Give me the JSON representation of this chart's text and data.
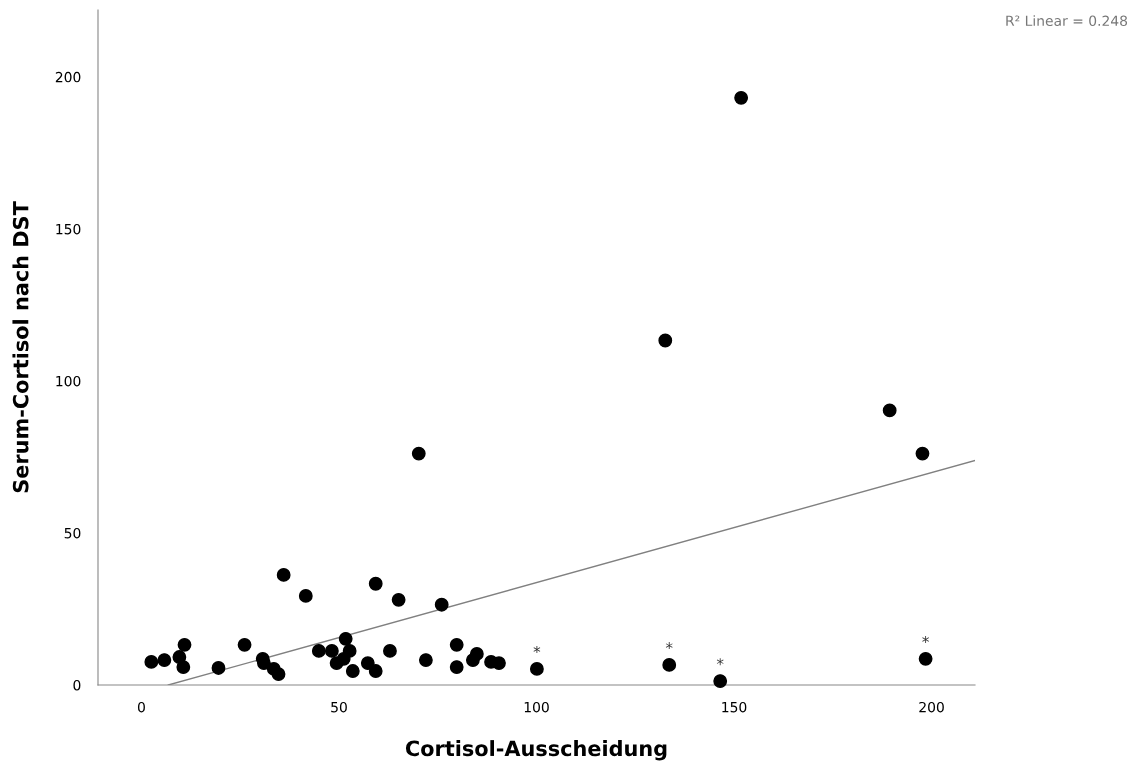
{
  "chart_data": {
    "type": "scatter",
    "xlabel": "Cortisol-Ausscheidung",
    "ylabel": "Serum-Cortisol nach DST",
    "xlim": [
      -11,
      211
    ],
    "ylim": [
      0,
      222
    ],
    "xticks": [
      0,
      50,
      100,
      150,
      200
    ],
    "yticks": [
      0,
      50,
      100,
      150,
      200
    ],
    "grid": false,
    "series": [
      {
        "marker": "circle",
        "color": "#000000",
        "x": [
          2.5,
          5.8,
          9.6,
          10.9,
          10.6,
          19.5,
          26.1,
          30.7,
          31,
          33.5,
          34.7,
          36,
          41.6,
          44.9,
          48.2,
          49.4,
          51.2,
          51.7,
          52.7,
          53.5,
          57.3,
          59.3,
          59.3,
          62.9,
          65.1,
          70.2,
          72,
          76,
          79.8,
          79.8,
          83.9,
          84.9,
          88.5,
          90.5,
          100.1,
          132.6,
          133.6,
          146.5,
          151.8,
          189.4,
          197.7,
          198.5
        ],
        "values": [
          7.6,
          8.2,
          9.2,
          13.2,
          5.9,
          5.6,
          13.2,
          8.6,
          7.2,
          5.3,
          3.6,
          36.2,
          29.3,
          11.2,
          11.2,
          7.2,
          8.6,
          15.2,
          11.2,
          4.6,
          7.2,
          33.3,
          4.6,
          11.2,
          28,
          76.1,
          8.2,
          26.4,
          13.2,
          5.9,
          8.2,
          10.2,
          7.6,
          7.2,
          5.3,
          113.3,
          6.6,
          1.3,
          193.1,
          90.3,
          76.1,
          8.6
        ]
      },
      {
        "type": "line",
        "color": "#808080",
        "line_style": "solid",
        "marker": "none",
        "x": [
          6.8,
          210.9
        ],
        "values": [
          0,
          73.8
        ]
      }
    ],
    "annotations": [
      "R² Linear = 0.248",
      {
        "text": "*",
        "x": 100.1,
        "y": 5.3
      },
      {
        "text": "*",
        "x": 133.6,
        "y": 6.6
      },
      {
        "text": "*",
        "x": 146.5,
        "y": 1.3
      },
      {
        "text": "*",
        "x": 198.5,
        "y": 8.6
      }
    ]
  }
}
